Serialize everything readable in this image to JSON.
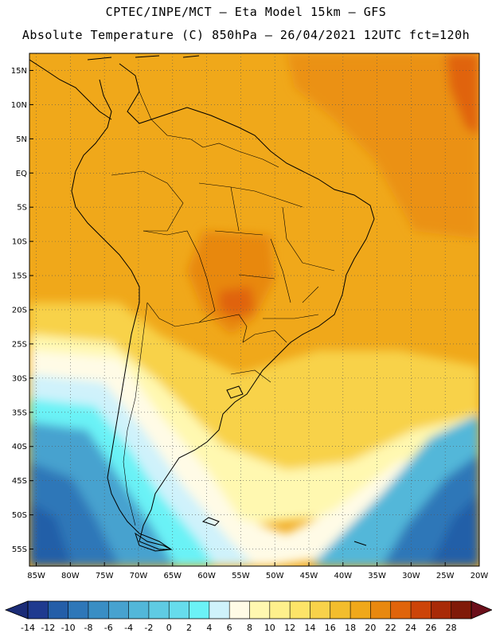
{
  "header": {
    "line1": "CPTEC/INPE/MCT –  Eta Model 15km – GFS",
    "line2": "Absolute Temperature (C) 850hPa – 26/04/2021 12UTC fct=120h"
  },
  "axes": {
    "lat_labels": [
      "15N",
      "10N",
      "5N",
      "EQ",
      "5S",
      "10S",
      "15S",
      "20S",
      "25S",
      "30S",
      "35S",
      "40S",
      "45S",
      "50S",
      "55S"
    ],
    "lat_values": [
      15,
      10,
      5,
      0,
      -5,
      -10,
      -15,
      -20,
      -25,
      -30,
      -35,
      -40,
      -45,
      -50,
      -55
    ],
    "lon_labels": [
      "85W",
      "80W",
      "75W",
      "70W",
      "65W",
      "60W",
      "55W",
      "50W",
      "45W",
      "40W",
      "35W",
      "30W",
      "25W",
      "20W"
    ],
    "lon_values": [
      -85,
      -80,
      -75,
      -70,
      -65,
      -60,
      -55,
      -50,
      -45,
      -40,
      -35,
      -30,
      -25,
      -20
    ],
    "lat_range": [
      17.5,
      -57.5
    ],
    "lon_range": [
      -86,
      -20
    ]
  },
  "colorbar": {
    "labels": [
      "-14",
      "-12",
      "-10",
      "-8",
      "-6",
      "-4",
      "-2",
      "0",
      "2",
      "4",
      "6",
      "8",
      "10",
      "12",
      "14",
      "16",
      "18",
      "20",
      "22",
      "24",
      "26",
      "28"
    ],
    "colors": [
      "#1f3a8f",
      "#245ea8",
      "#2e77b8",
      "#3a8ec4",
      "#47a2cf",
      "#52b7d9",
      "#5fcbe3",
      "#66dcec",
      "#6bf2f6",
      "#cff2fb",
      "#fffbe6",
      "#fff8b0",
      "#fef08c",
      "#fde468",
      "#f8d24a",
      "#f3bd2d",
      "#f0a81a",
      "#e8880f",
      "#e0640b",
      "#cc4409",
      "#a82a07",
      "#801a08"
    ]
  }
}
